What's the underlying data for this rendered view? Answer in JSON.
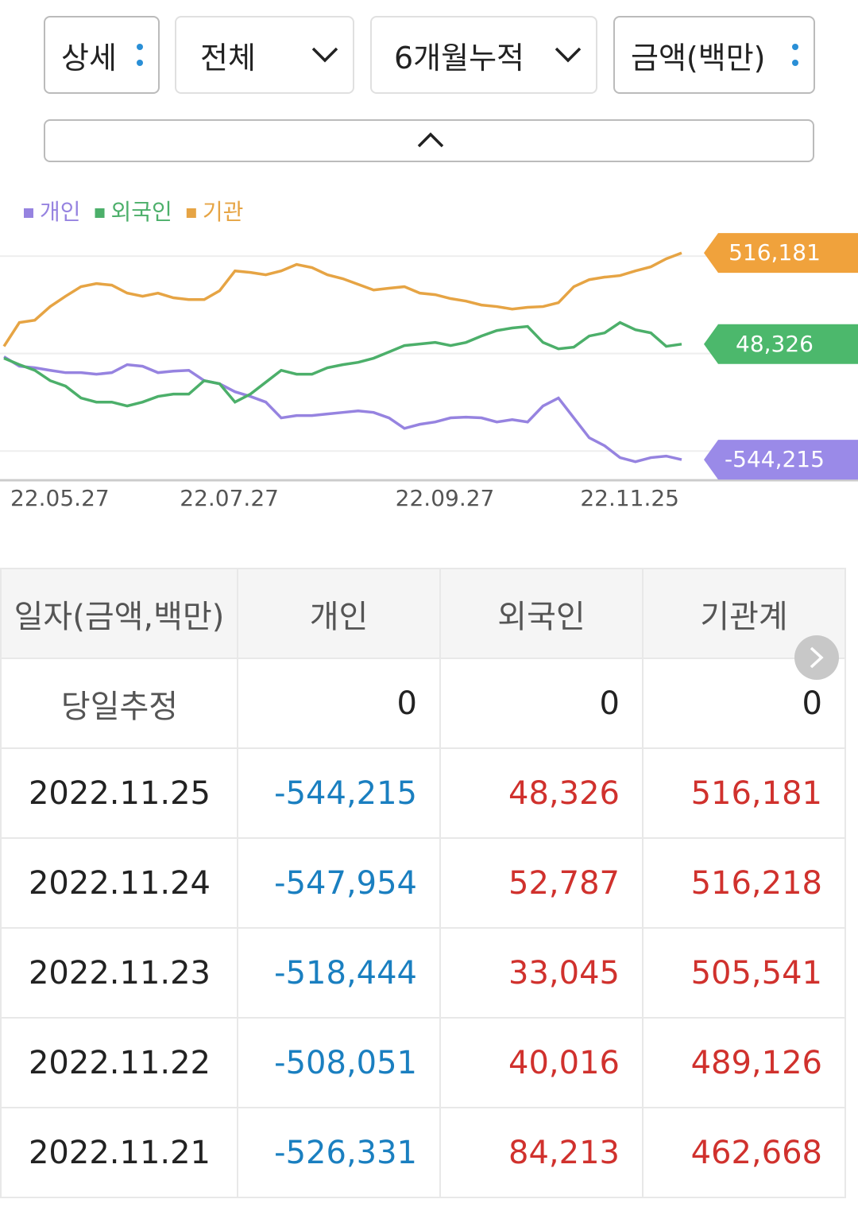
{
  "controls": {
    "filters": [
      "상세",
      "전체",
      "6개월누적",
      "금액(백만)"
    ]
  },
  "chart_data": {
    "type": "line",
    "categories": [
      null,
      null,
      null,
      null,
      null,
      null,
      null,
      "22.05.27",
      null,
      null,
      null,
      null,
      null,
      null,
      null,
      null,
      null,
      null,
      "22.07.27",
      null,
      null,
      null,
      null,
      null,
      null,
      null,
      null,
      null,
      null,
      null,
      null,
      null,
      "22.09.27",
      null,
      null,
      null,
      null,
      null,
      null,
      null,
      null,
      null,
      null,
      null,
      "22.11.25"
    ],
    "series": [
      {
        "name": "개인",
        "color": "#9683e0",
        "label_color": "#9a8ae8",
        "values": [
          -16000,
          -65000,
          -73000,
          -86000,
          -98000,
          -98000,
          -106000,
          -98000,
          -57000,
          -65000,
          -98000,
          -90000,
          -86000,
          -139000,
          -155000,
          -196000,
          -220000,
          -249000,
          -330000,
          -318000,
          -318000,
          -310000,
          -302000,
          -294000,
          -302000,
          -330000,
          -384000,
          -363000,
          -351000,
          -330000,
          -326000,
          -330000,
          -351000,
          -339000,
          -351000,
          -269000,
          -228000,
          -330000,
          -432000,
          -473000,
          -534000,
          -555000,
          -534000,
          -526000,
          -544215
        ],
        "value_labels": [
          null,
          null,
          null,
          null,
          null,
          null,
          null,
          null,
          null,
          null,
          null,
          null,
          null,
          null,
          null,
          null,
          null,
          null,
          null,
          null,
          null,
          null,
          null,
          null,
          null,
          null,
          null,
          null,
          null,
          null,
          null,
          null,
          null,
          null,
          null,
          null,
          null,
          null,
          null,
          null,
          null,
          null,
          null,
          null,
          "-544,215"
        ]
      },
      {
        "name": "외국인",
        "color": "#4caf6a",
        "label_color": "#4cb86c",
        "values": [
          -24000,
          -57000,
          -86000,
          -139000,
          -167000,
          -228000,
          -249000,
          -249000,
          -269000,
          -249000,
          -220000,
          -208000,
          -208000,
          -139000,
          -155000,
          -249000,
          -208000,
          -147000,
          -86000,
          -106000,
          -106000,
          -73000,
          -57000,
          -45000,
          -24000,
          8000,
          41000,
          49000,
          57000,
          41000,
          57000,
          90000,
          118000,
          131000,
          139000,
          57000,
          24000,
          33000,
          90000,
          106000,
          159000,
          122000,
          106000,
          37000,
          48326
        ],
        "value_labels": [
          null,
          null,
          null,
          null,
          null,
          null,
          null,
          null,
          null,
          null,
          null,
          null,
          null,
          null,
          null,
          null,
          null,
          null,
          null,
          null,
          null,
          null,
          null,
          null,
          null,
          null,
          null,
          null,
          null,
          null,
          null,
          null,
          null,
          null,
          null,
          null,
          null,
          null,
          null,
          null,
          null,
          null,
          null,
          null,
          "48,326"
        ]
      },
      {
        "name": "기관",
        "color": "#e6a444",
        "label_color": "#f0a23c",
        "values": [
          37000,
          159000,
          171000,
          241000,
          294000,
          343000,
          359000,
          351000,
          310000,
          294000,
          310000,
          286000,
          277000,
          277000,
          322000,
          424000,
          416000,
          404000,
          424000,
          457000,
          441000,
          404000,
          384000,
          355000,
          326000,
          335000,
          343000,
          310000,
          302000,
          282000,
          269000,
          249000,
          241000,
          228000,
          237000,
          241000,
          261000,
          343000,
          379000,
          392000,
          400000,
          424000,
          445000,
          486000,
          516181
        ],
        "value_labels": [
          null,
          null,
          null,
          null,
          null,
          null,
          null,
          null,
          null,
          null,
          null,
          null,
          null,
          null,
          null,
          null,
          null,
          null,
          null,
          null,
          null,
          null,
          null,
          null,
          null,
          null,
          null,
          null,
          null,
          null,
          null,
          null,
          null,
          null,
          null,
          null,
          null,
          null,
          null,
          null,
          null,
          null,
          null,
          null,
          "516,181"
        ]
      }
    ],
    "ylim": [
      -650000,
      590000
    ],
    "yticks": [
      -500000,
      0,
      500000
    ],
    "grid": true
  },
  "table": {
    "header": [
      "일자(금액,백만)",
      "개인",
      "외국인",
      "기관계"
    ],
    "rows": [
      [
        "당일추정",
        "0",
        "0",
        "0"
      ],
      [
        "2022.11.25",
        "-544,215",
        "48,326",
        "516,181"
      ],
      [
        "2022.11.24",
        "-547,954",
        "52,787",
        "516,218"
      ],
      [
        "2022.11.23",
        "-518,444",
        "33,045",
        "505,541"
      ],
      [
        "2022.11.22",
        "-508,051",
        "40,016",
        "489,126"
      ],
      [
        "2022.11.21",
        "-526,331",
        "84,213",
        "462,668"
      ]
    ]
  }
}
